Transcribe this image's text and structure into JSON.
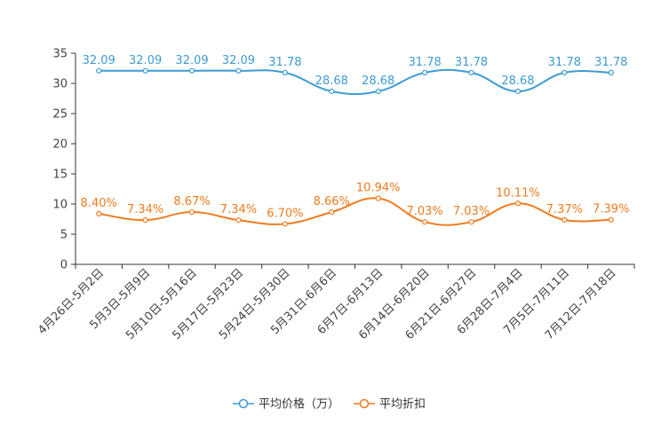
{
  "chart_data": {
    "type": "line",
    "categories": [
      "4月26日-5月2日",
      "5月3日-5月9日",
      "5月10日-5月16日",
      "5月17日-5月23日",
      "5月24日-5月30日",
      "5月31日-6月6日",
      "6月7日-6月13日",
      "6月14日-6月20日",
      "6月21日-6月27日",
      "6月28日-7月4日",
      "7月5日-7月11日",
      "7月12日-7月18日"
    ],
    "series": [
      {
        "name": "平均价格（万）",
        "color": "#3d9bd3",
        "values": [
          32.09,
          32.09,
          32.09,
          32.09,
          31.78,
          28.68,
          28.68,
          31.78,
          31.78,
          28.68,
          31.78,
          31.78
        ],
        "labels": [
          "32.09",
          "32.09",
          "32.09",
          "32.09",
          "31.78",
          "28.68",
          "28.68",
          "31.78",
          "31.78",
          "28.68",
          "31.78",
          "31.78"
        ]
      },
      {
        "name": "平均折扣",
        "color": "#f07b1f",
        "values": [
          8.4,
          7.34,
          8.67,
          7.34,
          6.7,
          8.66,
          10.94,
          7.03,
          7.03,
          10.11,
          7.37,
          7.39
        ],
        "labels": [
          "8.40%",
          "7.34%",
          "8.67%",
          "7.34%",
          "6.70%",
          "8.66%",
          "10.94%",
          "7.03%",
          "7.03%",
          "10.11%",
          "7.37%",
          "7.39%"
        ]
      }
    ],
    "y_ticks": [
      "0",
      "5",
      "10",
      "15",
      "20",
      "25",
      "30",
      "35"
    ],
    "ylim": [
      0,
      35
    ],
    "legend_position": "bottom-center",
    "grid": false
  }
}
